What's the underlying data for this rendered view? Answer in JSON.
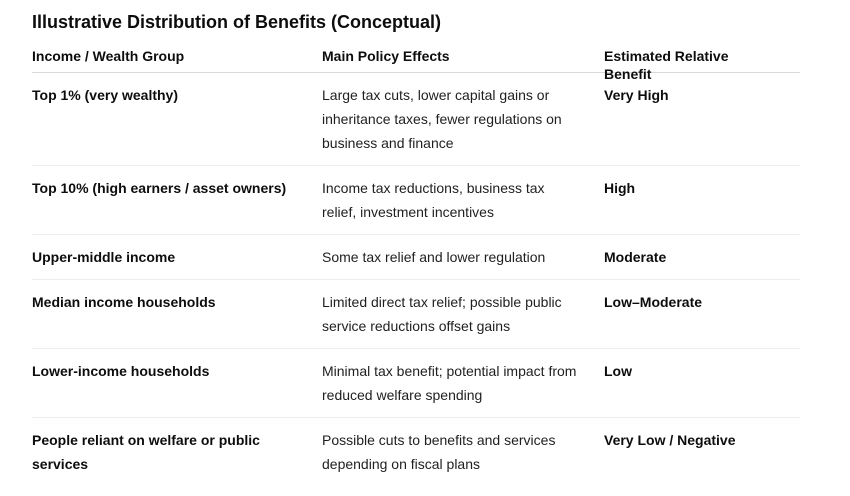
{
  "title": "Illustrative Distribution of Benefits (Conceptual)",
  "table": {
    "headers": [
      "Income / Wealth Group",
      "Main Policy Effects",
      "Estimated Relative Benefit"
    ],
    "rows": [
      {
        "group": "Top 1% (very wealthy)",
        "effects": "Large tax cuts, lower capital gains or inheritance taxes, fewer regulations on business and finance",
        "benefit": "Very High"
      },
      {
        "group": "Top 10% (high earners / asset owners)",
        "effects": "Income tax reductions, business tax relief, investment incentives",
        "benefit": "High"
      },
      {
        "group": "Upper-middle income",
        "effects": "Some tax relief and lower regulation",
        "benefit": "Moderate"
      },
      {
        "group": "Median income households",
        "effects": "Limited direct tax relief; possible public service reductions offset gains",
        "benefit": "Low–Moderate"
      },
      {
        "group": "Lower-income households",
        "effects": "Minimal tax benefit; potential impact from reduced welfare spending",
        "benefit": "Low"
      },
      {
        "group": "People reliant on welfare or public services",
        "effects": "Possible cuts to benefits and services depending on fiscal plans",
        "benefit": "Very Low / Negative"
      }
    ]
  }
}
